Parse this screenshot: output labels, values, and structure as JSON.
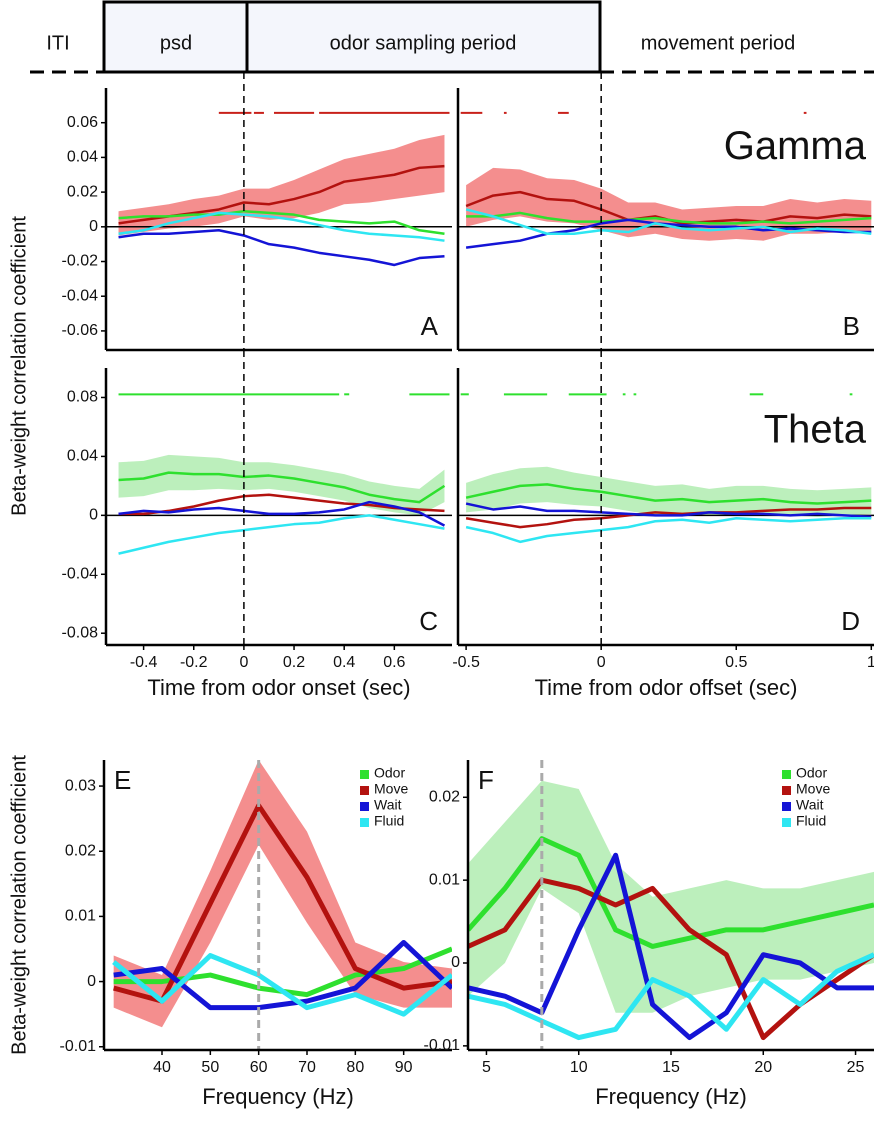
{
  "banner": {
    "labels": [
      "ITI",
      "psd",
      "odor sampling period",
      "movement period"
    ]
  },
  "chart_data": [
    {
      "type": "line",
      "ylabel": "Beta-weight correlation coefficient",
      "label": "A",
      "x": [
        -0.5,
        -0.4,
        -0.3,
        -0.2,
        -0.1,
        0,
        0.1,
        0.2,
        0.3,
        0.4,
        0.5,
        0.6,
        0.7,
        0.8
      ],
      "xlim": [
        -0.55,
        0.83
      ],
      "ylim": [
        -0.071,
        0.08
      ],
      "yticks": [
        0.06,
        0.04,
        0.02,
        0,
        -0.02,
        -0.04,
        -0.06
      ],
      "hline": 0,
      "vline": 0,
      "sig": {
        "color": "#c8201a",
        "segments": [
          [
            -0.1,
            0.03
          ],
          [
            0.04,
            0.08
          ],
          [
            0.12,
            0.28
          ],
          [
            0.3,
            0.82
          ]
        ]
      },
      "series": [
        {
          "color": "#b3120f",
          "band_color": "#f27a7a",
          "values": [
            0.002,
            0.004,
            0.006,
            0.008,
            0.01,
            0.014,
            0.013,
            0.016,
            0.02,
            0.026,
            0.028,
            0.03,
            0.034,
            0.035
          ],
          "lower": [
            -0.005,
            -0.003,
            -0.001,
            0,
            0.002,
            0.006,
            0.004,
            0.005,
            0.008,
            0.013,
            0.014,
            0.016,
            0.018,
            0.02
          ],
          "upper": [
            0.009,
            0.011,
            0.013,
            0.016,
            0.018,
            0.022,
            0.022,
            0.027,
            0.033,
            0.039,
            0.042,
            0.045,
            0.05,
            0.053
          ]
        },
        {
          "color": "#2ee02e",
          "values": [
            0.005,
            0.006,
            0.006,
            0.007,
            0.007,
            0.009,
            0.008,
            0.007,
            0.004,
            0.003,
            0.002,
            0.003,
            -0.002,
            -0.004
          ]
        },
        {
          "color": "#1414d6",
          "values": [
            -0.006,
            -0.004,
            -0.004,
            -0.003,
            -0.002,
            -0.005,
            -0.01,
            -0.012,
            -0.015,
            -0.017,
            -0.019,
            -0.022,
            -0.018,
            -0.017
          ]
        },
        {
          "color": "#2ee6f2",
          "values": [
            -0.004,
            -0.002,
            0.002,
            0.005,
            0.008,
            0.007,
            0.006,
            0.004,
            0.001,
            -0.002,
            -0.004,
            -0.005,
            -0.006,
            -0.008
          ]
        }
      ]
    },
    {
      "type": "line",
      "title": "Gamma",
      "label": "B",
      "x": [
        -0.5,
        -0.4,
        -0.3,
        -0.2,
        -0.1,
        0,
        0.1,
        0.2,
        0.3,
        0.4,
        0.5,
        0.6,
        0.7,
        0.8,
        0.9,
        1.0
      ],
      "xlim": [
        -0.53,
        1.01
      ],
      "ylim": [
        -0.071,
        0.08
      ],
      "hline": 0,
      "vline": 0,
      "sig": {
        "color": "#c8201a",
        "segments": [
          [
            -0.52,
            -0.44
          ],
          [
            -0.36,
            -0.35
          ],
          [
            -0.16,
            -0.12
          ],
          [
            0.75,
            0.76
          ]
        ]
      },
      "series": [
        {
          "color": "#b3120f",
          "band_color": "#f27a7a",
          "values": [
            0.012,
            0.018,
            0.02,
            0.016,
            0.015,
            0.01,
            0.004,
            0.006,
            0.002,
            0.003,
            0.004,
            0.003,
            0.006,
            0.005,
            0.007,
            0.006
          ],
          "lower": [
            0,
            0.004,
            0.006,
            0.003,
            0.002,
            -0.002,
            -0.006,
            -0.004,
            -0.007,
            -0.008,
            -0.007,
            -0.008,
            -0.004,
            -0.004,
            -0.003,
            -0.003
          ],
          "upper": [
            0.024,
            0.034,
            0.033,
            0.028,
            0.027,
            0.022,
            0.014,
            0.014,
            0.01,
            0.011,
            0.012,
            0.012,
            0.016,
            0.014,
            0.016,
            0.015
          ]
        },
        {
          "color": "#2ee02e",
          "values": [
            0.006,
            0.006,
            0.008,
            0.005,
            0.003,
            0.003,
            0.004,
            0.005,
            0.003,
            0.002,
            0.002,
            0.003,
            0.002,
            0.003,
            0.004,
            0.005
          ]
        },
        {
          "color": "#1414d6",
          "values": [
            -0.012,
            -0.01,
            -0.008,
            -0.004,
            -0.002,
            0.002,
            0.004,
            0.002,
            0.001,
            0,
            0,
            -0.002,
            -0.001,
            -0.002,
            -0.003,
            -0.003
          ]
        },
        {
          "color": "#2ee6f2",
          "values": [
            0.01,
            0.006,
            0.001,
            -0.004,
            -0.004,
            -0.002,
            -0.003,
            0.002,
            -0.001,
            -0.002,
            -0.001,
            0,
            -0.003,
            -0.001,
            -0.002,
            -0.004
          ]
        }
      ]
    },
    {
      "type": "line",
      "label": "C",
      "xlabel": "Time from odor onset (sec)",
      "x": [
        -0.5,
        -0.4,
        -0.3,
        -0.2,
        -0.1,
        0,
        0.1,
        0.2,
        0.3,
        0.4,
        0.5,
        0.6,
        0.7,
        0.8
      ],
      "xlim": [
        -0.55,
        0.83
      ],
      "ylim": [
        -0.088,
        0.1
      ],
      "xticks": [
        -0.4,
        -0.2,
        0,
        0.2,
        0.4,
        0.6
      ],
      "yticks": [
        0.08,
        0.04,
        0,
        -0.04,
        -0.08
      ],
      "hline": 0,
      "vline": 0,
      "sig": {
        "color": "#2ee02e",
        "segments": [
          [
            -0.5,
            0.38
          ],
          [
            0.4,
            0.42
          ],
          [
            0.66,
            0.82
          ]
        ]
      },
      "series": [
        {
          "color": "#2ee02e",
          "band_color": "#b0ecb0",
          "values": [
            0.024,
            0.025,
            0.029,
            0.028,
            0.028,
            0.026,
            0.027,
            0.025,
            0.022,
            0.019,
            0.014,
            0.011,
            0.009,
            0.02
          ],
          "lower": [
            0.012,
            0.013,
            0.017,
            0.017,
            0.018,
            0.017,
            0.018,
            0.016,
            0.013,
            0.01,
            0.005,
            0.002,
            0,
            0.009
          ],
          "upper": [
            0.036,
            0.037,
            0.041,
            0.04,
            0.039,
            0.036,
            0.036,
            0.034,
            0.031,
            0.028,
            0.023,
            0.02,
            0.018,
            0.031
          ]
        },
        {
          "color": "#b3120f",
          "values": [
            0.001,
            0.001,
            0.003,
            0.006,
            0.01,
            0.013,
            0.014,
            0.012,
            0.01,
            0.008,
            0.007,
            0.005,
            0.004,
            0.003
          ]
        },
        {
          "color": "#1414d6",
          "values": [
            0.001,
            0.003,
            0.002,
            0.004,
            0.005,
            0.003,
            0.001,
            0.001,
            0.002,
            0.004,
            0.009,
            0.006,
            0.002,
            -0.007
          ]
        },
        {
          "color": "#2ee6f2",
          "values": [
            -0.026,
            -0.022,
            -0.018,
            -0.015,
            -0.012,
            -0.01,
            -0.008,
            -0.006,
            -0.005,
            -0.002,
            0,
            -0.003,
            -0.006,
            -0.009
          ]
        }
      ]
    },
    {
      "type": "line",
      "title": "Theta",
      "label": "D",
      "xlabel": "Time from odor offset (sec)",
      "x": [
        -0.5,
        -0.4,
        -0.3,
        -0.2,
        -0.1,
        0,
        0.1,
        0.2,
        0.3,
        0.4,
        0.5,
        0.6,
        0.7,
        0.8,
        0.9,
        1.0
      ],
      "xlim": [
        -0.53,
        1.01
      ],
      "ylim": [
        -0.088,
        0.1
      ],
      "xticks": [
        -0.5,
        0,
        0.5,
        1
      ],
      "hline": 0,
      "vline": 0,
      "sig": {
        "color": "#2ee02e",
        "segments": [
          [
            -0.52,
            -0.49
          ],
          [
            -0.36,
            -0.2
          ],
          [
            -0.12,
            0.02
          ],
          [
            0.08,
            0.09
          ],
          [
            0.12,
            0.13
          ],
          [
            0.55,
            0.6
          ],
          [
            0.92,
            0.93
          ]
        ]
      },
      "series": [
        {
          "color": "#2ee02e",
          "band_color": "#b0ecb0",
          "values": [
            0.012,
            0.016,
            0.02,
            0.021,
            0.018,
            0.016,
            0.013,
            0.01,
            0.011,
            0.009,
            0.01,
            0.011,
            0.009,
            0.008,
            0.009,
            0.01
          ],
          "lower": [
            0.002,
            0.004,
            0.008,
            0.009,
            0.007,
            0.006,
            0.003,
            0,
            0.001,
            0,
            0,
            0.002,
            0,
            -0.001,
            0,
            0.001
          ],
          "upper": [
            0.022,
            0.028,
            0.032,
            0.033,
            0.029,
            0.026,
            0.023,
            0.02,
            0.021,
            0.018,
            0.02,
            0.02,
            0.018,
            0.017,
            0.018,
            0.019
          ]
        },
        {
          "color": "#b3120f",
          "values": [
            -0.002,
            -0.005,
            -0.008,
            -0.006,
            -0.003,
            -0.002,
            0,
            0.002,
            0.001,
            0.002,
            0.002,
            0.003,
            0.004,
            0.004,
            0.005,
            0.005
          ]
        },
        {
          "color": "#1414d6",
          "values": [
            0.008,
            0.004,
            0.006,
            0.003,
            0.003,
            0.002,
            0.001,
            0,
            0,
            0.002,
            0.001,
            0.001,
            0,
            0.001,
            0,
            -0.001
          ]
        },
        {
          "color": "#2ee6f2",
          "values": [
            -0.008,
            -0.012,
            -0.018,
            -0.014,
            -0.012,
            -0.01,
            -0.008,
            -0.004,
            -0.003,
            -0.005,
            -0.002,
            -0.003,
            -0.004,
            -0.003,
            -0.002,
            -0.002
          ]
        }
      ]
    },
    {
      "type": "line",
      "ylabel": "Beta-weight correlation coefficient",
      "label": "E",
      "xlabel": "Frequency (Hz)",
      "x": [
        30,
        40,
        50,
        60,
        70,
        80,
        90,
        100
      ],
      "xlim": [
        28,
        100
      ],
      "ylim": [
        -0.0105,
        0.034
      ],
      "xticks": [
        40,
        50,
        60,
        70,
        80,
        90
      ],
      "yticks": [
        0.03,
        0.02,
        0.01,
        0,
        -0.01
      ],
      "vline": 60,
      "legend": "upper right",
      "series": [
        {
          "name": "Odor",
          "color": "#2ee02e",
          "values": [
            0,
            0,
            0.001,
            -0.001,
            -0.002,
            0.001,
            0.002,
            0.005
          ]
        },
        {
          "name": "Move",
          "color": "#b3120f",
          "band_color": "#f27a7a",
          "values": [
            -0.001,
            -0.003,
            0.012,
            0.027,
            0.016,
            0.002,
            -0.001,
            0
          ],
          "lower": [
            -0.004,
            -0.007,
            0.006,
            0.021,
            0.009,
            -0.002,
            -0.004,
            -0.004
          ],
          "upper": [
            0.004,
            0.001,
            0.017,
            0.034,
            0.023,
            0.006,
            0.003,
            0.002
          ]
        },
        {
          "name": "Wait",
          "color": "#1414d6",
          "values": [
            0.001,
            0.002,
            -0.004,
            -0.004,
            -0.003,
            -0.001,
            0.006,
            -0.001
          ]
        },
        {
          "name": "Fluid",
          "color": "#2ee6f2",
          "values": [
            0.003,
            -0.003,
            0.004,
            0.001,
            -0.004,
            -0.002,
            -0.005,
            0.001
          ]
        }
      ]
    },
    {
      "type": "line",
      "label": "F",
      "xlabel": "Frequency (Hz)",
      "x": [
        4,
        6,
        8,
        10,
        12,
        14,
        16,
        18,
        20,
        22,
        24,
        26
      ],
      "xlim": [
        4,
        26
      ],
      "ylim": [
        -0.0105,
        0.0245
      ],
      "xticks": [
        5,
        10,
        15,
        20,
        25
      ],
      "yticks": [
        0.02,
        0.01,
        0,
        -0.01
      ],
      "vline": 8,
      "legend": "upper right",
      "series": [
        {
          "name": "Odor",
          "color": "#2ee02e",
          "band_color": "#b0ecb0",
          "values": [
            0.004,
            0.009,
            0.015,
            0.013,
            0.004,
            0.002,
            0.003,
            0.004,
            0.004,
            0.005,
            0.006,
            0.007
          ],
          "lower": [
            -0.004,
            0,
            0.009,
            0.006,
            -0.006,
            -0.006,
            -0.004,
            -0.003,
            -0.002,
            -0.002,
            -0.001,
            0
          ],
          "upper": [
            0.012,
            0.017,
            0.022,
            0.021,
            0.012,
            0.008,
            0.009,
            0.01,
            0.009,
            0.009,
            0.01,
            0.011
          ]
        },
        {
          "name": "Move",
          "color": "#b3120f",
          "values": [
            0.002,
            0.004,
            0.01,
            0.009,
            0.007,
            0.009,
            0.004,
            0.001,
            -0.009,
            -0.005,
            -0.002,
            0.001
          ]
        },
        {
          "name": "Wait",
          "color": "#1414d6",
          "values": [
            -0.003,
            -0.004,
            -0.006,
            0.004,
            0.013,
            -0.005,
            -0.009,
            -0.006,
            0.001,
            0,
            -0.003,
            -0.003
          ]
        },
        {
          "name": "Fluid",
          "color": "#2ee6f2",
          "values": [
            -0.004,
            -0.005,
            -0.007,
            -0.009,
            -0.008,
            -0.002,
            -0.004,
            -0.008,
            -0.002,
            -0.005,
            -0.001,
            0.001
          ]
        }
      ]
    }
  ]
}
